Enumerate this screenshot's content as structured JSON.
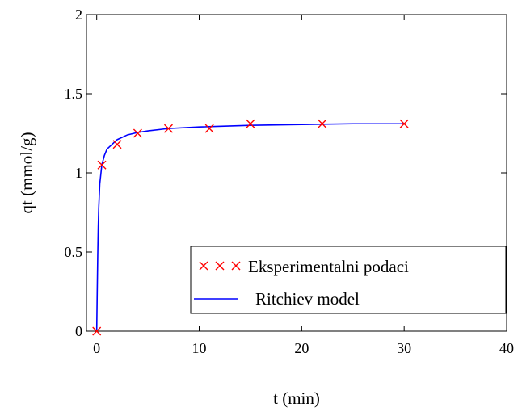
{
  "chart_data": {
    "type": "line",
    "xlabel": "t (min)",
    "ylabel": "qt (mmol/g)",
    "xlim": [
      -1,
      40
    ],
    "ylim": [
      0,
      2
    ],
    "x_ticks": [
      0,
      10,
      20,
      30,
      40
    ],
    "y_ticks": [
      0,
      0.5,
      1,
      1.5,
      2
    ],
    "x_tick_labels": [
      "0",
      "10",
      "20",
      "30",
      "40"
    ],
    "y_tick_labels": [
      "0",
      "0.5",
      "1",
      "1.5",
      "2"
    ],
    "grid": false,
    "legend_position": "bottom-right",
    "series": [
      {
        "name": "Eksperimentalni podaci",
        "kind": "scatter",
        "marker": "x",
        "color": "#ff0000",
        "points": [
          [
            0,
            0
          ],
          [
            0.5,
            1.05
          ],
          [
            2,
            1.18
          ],
          [
            4,
            1.25
          ],
          [
            7,
            1.28
          ],
          [
            11,
            1.28
          ],
          [
            15,
            1.31
          ],
          [
            22,
            1.31
          ],
          [
            30,
            1.31
          ]
        ]
      },
      {
        "name": "Ritchiev model",
        "kind": "line",
        "color": "#0000ff",
        "points": [
          [
            0,
            0
          ],
          [
            0.05,
            0.25
          ],
          [
            0.1,
            0.48
          ],
          [
            0.15,
            0.66
          ],
          [
            0.2,
            0.78
          ],
          [
            0.3,
            0.93
          ],
          [
            0.5,
            1.05
          ],
          [
            0.75,
            1.11
          ],
          [
            1,
            1.15
          ],
          [
            1.5,
            1.18
          ],
          [
            2,
            1.21
          ],
          [
            3,
            1.24
          ],
          [
            4,
            1.255
          ],
          [
            5,
            1.265
          ],
          [
            7,
            1.28
          ],
          [
            10,
            1.29
          ],
          [
            15,
            1.3
          ],
          [
            20,
            1.305
          ],
          [
            25,
            1.31
          ],
          [
            30,
            1.31
          ]
        ]
      }
    ]
  }
}
